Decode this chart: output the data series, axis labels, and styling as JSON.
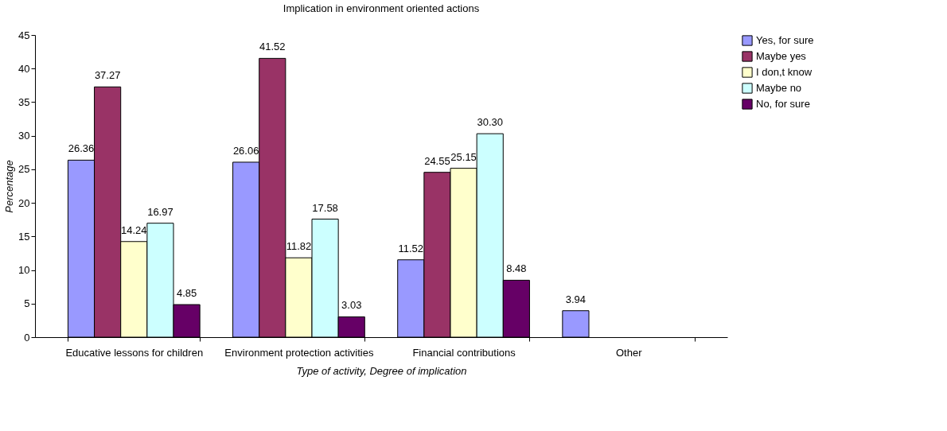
{
  "chart_data": {
    "type": "bar",
    "title": "Implication in environment oriented actions",
    "xlabel": "Type of activity, Degree of implication",
    "ylabel": "Percentage",
    "categories": [
      "Educative lessons for children",
      "Environment protection activities",
      "Financial contributions",
      "Other"
    ],
    "series": [
      {
        "name": "Yes, for sure",
        "color": "#9999ff",
        "values": [
          26.36,
          26.06,
          11.52,
          3.94
        ],
        "value_labels": [
          "26.36",
          "26.06",
          "11.52",
          "3.94"
        ]
      },
      {
        "name": "Maybe yes",
        "color": "#993366",
        "values": [
          37.27,
          41.52,
          24.55,
          null
        ],
        "value_labels": [
          "37.27",
          "41.52",
          "24.55",
          null
        ]
      },
      {
        "name": "I don,t know",
        "color": "#ffffcc",
        "values": [
          14.24,
          11.82,
          25.15,
          null
        ],
        "value_labels": [
          "14.24",
          "11.82",
          "25.15",
          null
        ]
      },
      {
        "name": "Maybe no",
        "color": "#ccffff",
        "values": [
          16.97,
          17.58,
          30.3,
          null
        ],
        "value_labels": [
          "16.97",
          "17.58",
          "30.30",
          null
        ]
      },
      {
        "name": "No, for sure",
        "color": "#660066",
        "values": [
          4.85,
          3.03,
          8.48,
          null
        ],
        "value_labels": [
          "4.85",
          "3.03",
          "8.48",
          null
        ]
      }
    ],
    "ylim": [
      0,
      45
    ],
    "yticks": [
      0,
      5,
      10,
      15,
      20,
      25,
      30,
      35,
      40,
      45
    ],
    "grid": false,
    "legend": "right"
  }
}
